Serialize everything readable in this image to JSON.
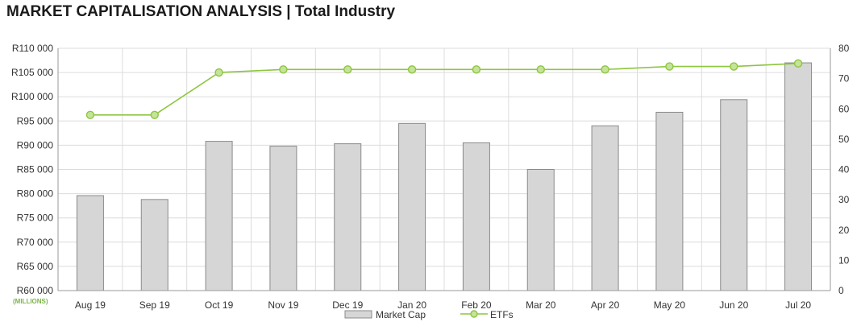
{
  "header": {
    "title": "MARKET CAPITALISATION ANALYSIS | Total Industry"
  },
  "colors": {
    "bar_fill": "#d6d6d6",
    "bar_stroke": "#8a8a8a",
    "line": "#8dc63f",
    "marker_fill": "#c5e39a",
    "grid": "#dcdcdc",
    "units_label": "#7ab648"
  },
  "chart_data": {
    "type": "bar",
    "title": "MARKET CAPITALISATION ANALYSIS | Total Industry",
    "categories": [
      "Aug 19",
      "Sep 19",
      "Oct 19",
      "Nov 19",
      "Dec 19",
      "Jan 20",
      "Feb 20",
      "Mar 20",
      "Apr 20",
      "May 20",
      "Jun 20",
      "Jul 20"
    ],
    "series": [
      {
        "name": "Market Cap",
        "type": "bar",
        "axis": "left",
        "values": [
          79600,
          78800,
          90800,
          89800,
          90300,
          94500,
          90500,
          85000,
          94000,
          96800,
          99400,
          107000
        ]
      },
      {
        "name": "ETFs",
        "type": "line",
        "axis": "right",
        "values": [
          58,
          58,
          72,
          73,
          73,
          73,
          73,
          73,
          73,
          74,
          74,
          75
        ]
      }
    ],
    "y_left": {
      "min": 60000,
      "max": 110000,
      "step": 5000,
      "tick_labels": [
        "R60 000",
        "R65 000",
        "R70 000",
        "R75 000",
        "R80 000",
        "R85 000",
        "R90 000",
        "R95 000",
        "R100 000",
        "R105 000",
        "R110 000"
      ],
      "units_label": "(MILLIONS)"
    },
    "y_right": {
      "min": 0,
      "max": 80,
      "step": 10,
      "tick_labels": [
        "0",
        "10",
        "20",
        "30",
        "40",
        "50",
        "60",
        "70",
        "80"
      ]
    },
    "grid": true,
    "legend": {
      "placement": "bottom-center",
      "entries": [
        "Market Cap",
        "ETFs"
      ]
    }
  }
}
